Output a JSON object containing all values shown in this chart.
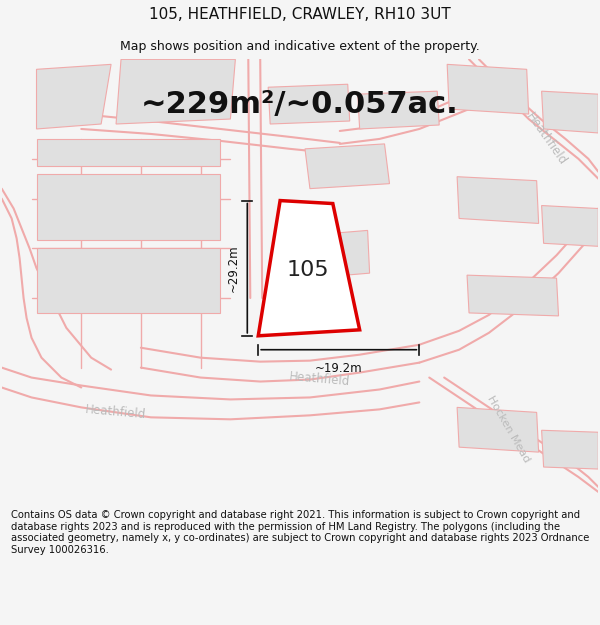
{
  "title": "105, HEATHFIELD, CRAWLEY, RH10 3UT",
  "subtitle": "Map shows position and indicative extent of the property.",
  "area_text": "~229m²/~0.057ac.",
  "dim_width": "~19.2m",
  "dim_height": "~29.2m",
  "label_105": "105",
  "footer": "Contains OS data © Crown copyright and database right 2021. This information is subject to Crown copyright and database rights 2023 and is reproduced with the permission of HM Land Registry. The polygons (including the associated geometry, namely x, y co-ordinates) are subject to Crown copyright and database rights 2023 Ordnance Survey 100026316.",
  "bg_color": "#f5f5f5",
  "map_bg": "#ffffff",
  "plot_color": "#dd0000",
  "plot_fill": "#ffffff",
  "road_line_color": "#f0aaaa",
  "road_line_lw": 1.0,
  "building_fill": "#e0e0e0",
  "building_stroke": "#f0aaaa",
  "road_label_color": "#bbbbbb",
  "title_fontsize": 11,
  "subtitle_fontsize": 9,
  "area_fontsize": 22,
  "footer_fontsize": 7.2
}
